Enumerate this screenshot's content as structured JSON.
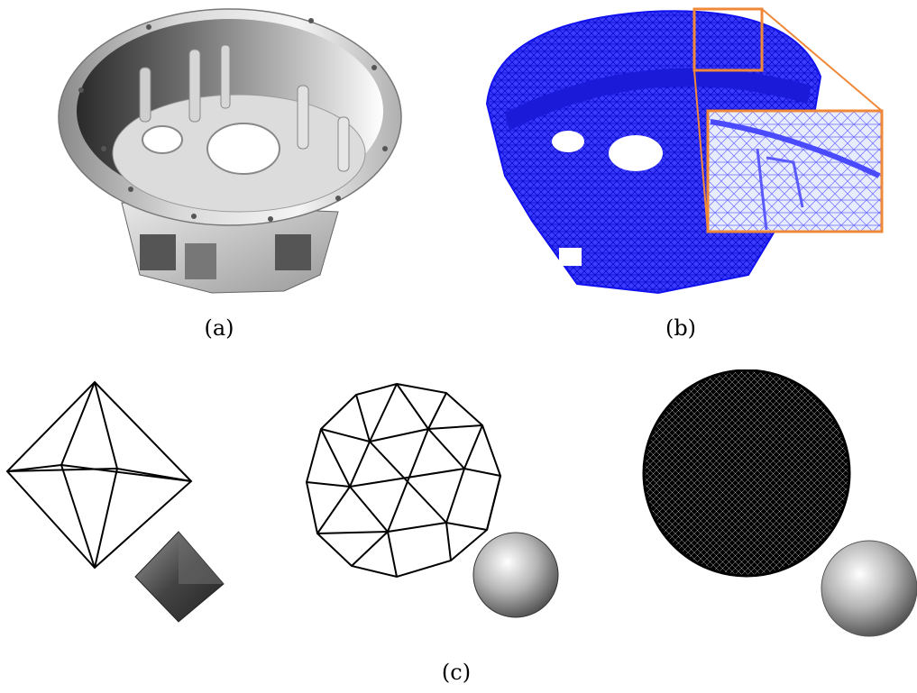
{
  "figure": {
    "captions": {
      "a": "(a)",
      "b": "(b)",
      "c": "(c)"
    },
    "colors": {
      "mesh_blue": "#1111ee",
      "zoom_orange": "#f0883a",
      "wire_black": "#000000"
    },
    "panels": {
      "a": {
        "subject": "cad-housing-render"
      },
      "b": {
        "subject": "housing-triangle-mesh"
      },
      "c": {
        "subject": "sphere-refinement-sequence",
        "levels": [
          "octahedron",
          "icosphere-coarse",
          "icosphere-fine"
        ]
      }
    }
  }
}
